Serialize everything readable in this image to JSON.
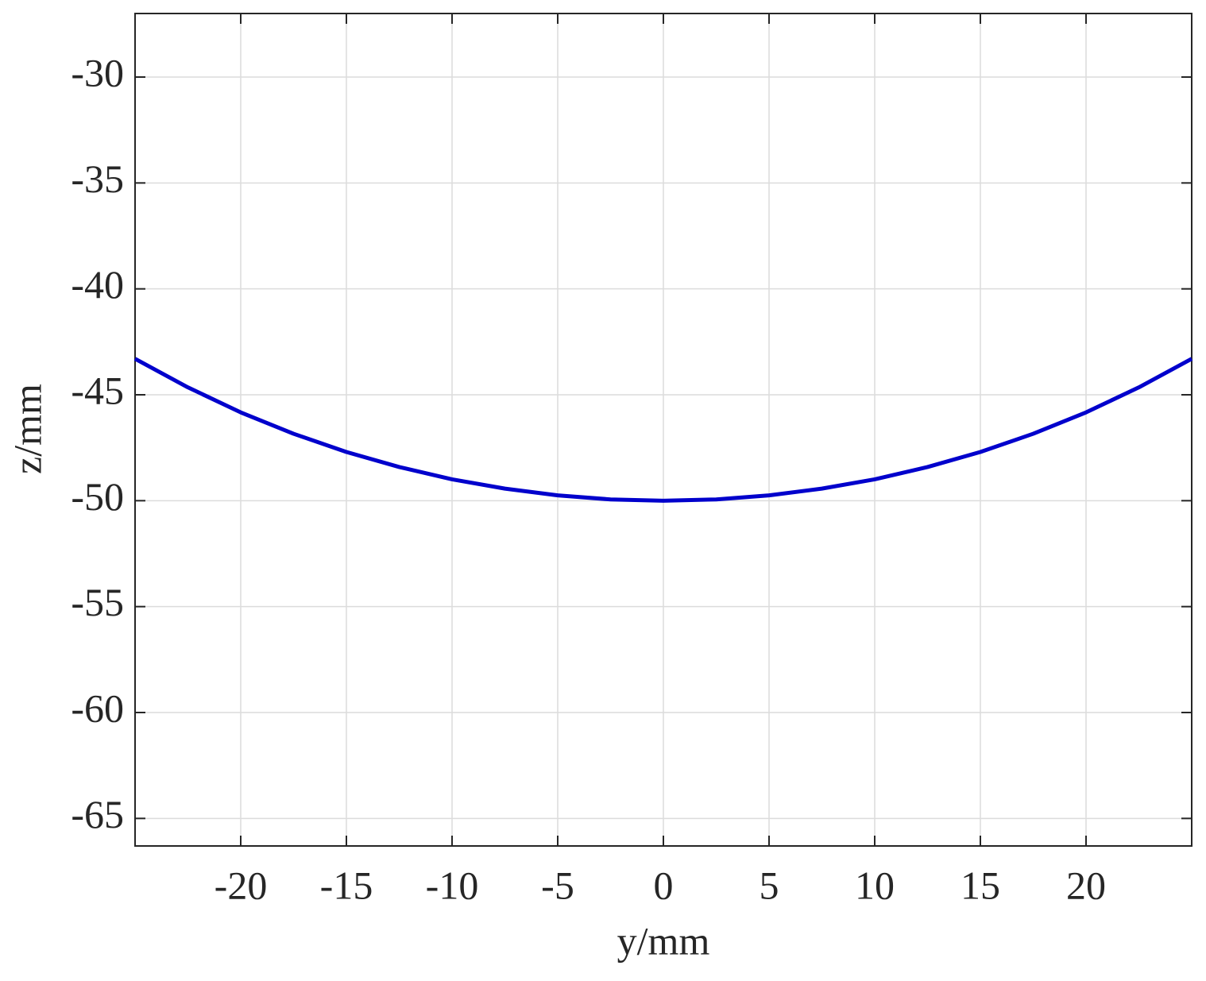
{
  "chart_data": {
    "type": "line",
    "x_label": "y/mm",
    "y_label": "z/mm",
    "x": [
      -25,
      -22.5,
      -20,
      -17.5,
      -15,
      -12.5,
      -10,
      -7.5,
      -5,
      -2.5,
      0,
      2.5,
      5,
      7.5,
      10,
      12.5,
      15,
      17.5,
      20,
      22.5,
      25
    ],
    "series": [
      {
        "color": "#0000cc",
        "values": [
          -43.3,
          -44.65,
          -45.83,
          -46.84,
          -47.7,
          -48.41,
          -48.99,
          -49.43,
          -49.75,
          -49.94,
          -50,
          -49.94,
          -49.75,
          -49.43,
          -48.99,
          -48.41,
          -47.7,
          -46.84,
          -45.83,
          -44.65,
          -43.3
        ]
      }
    ],
    "xlim": [
      -25,
      25
    ],
    "ylim": [
      -66.3,
      -27
    ],
    "xticks": [
      -20,
      -15,
      -10,
      -5,
      0,
      5,
      10,
      15,
      20
    ],
    "yticks": [
      -65,
      -60,
      -55,
      -50,
      -45,
      -40,
      -35,
      -30
    ],
    "grid": true
  }
}
